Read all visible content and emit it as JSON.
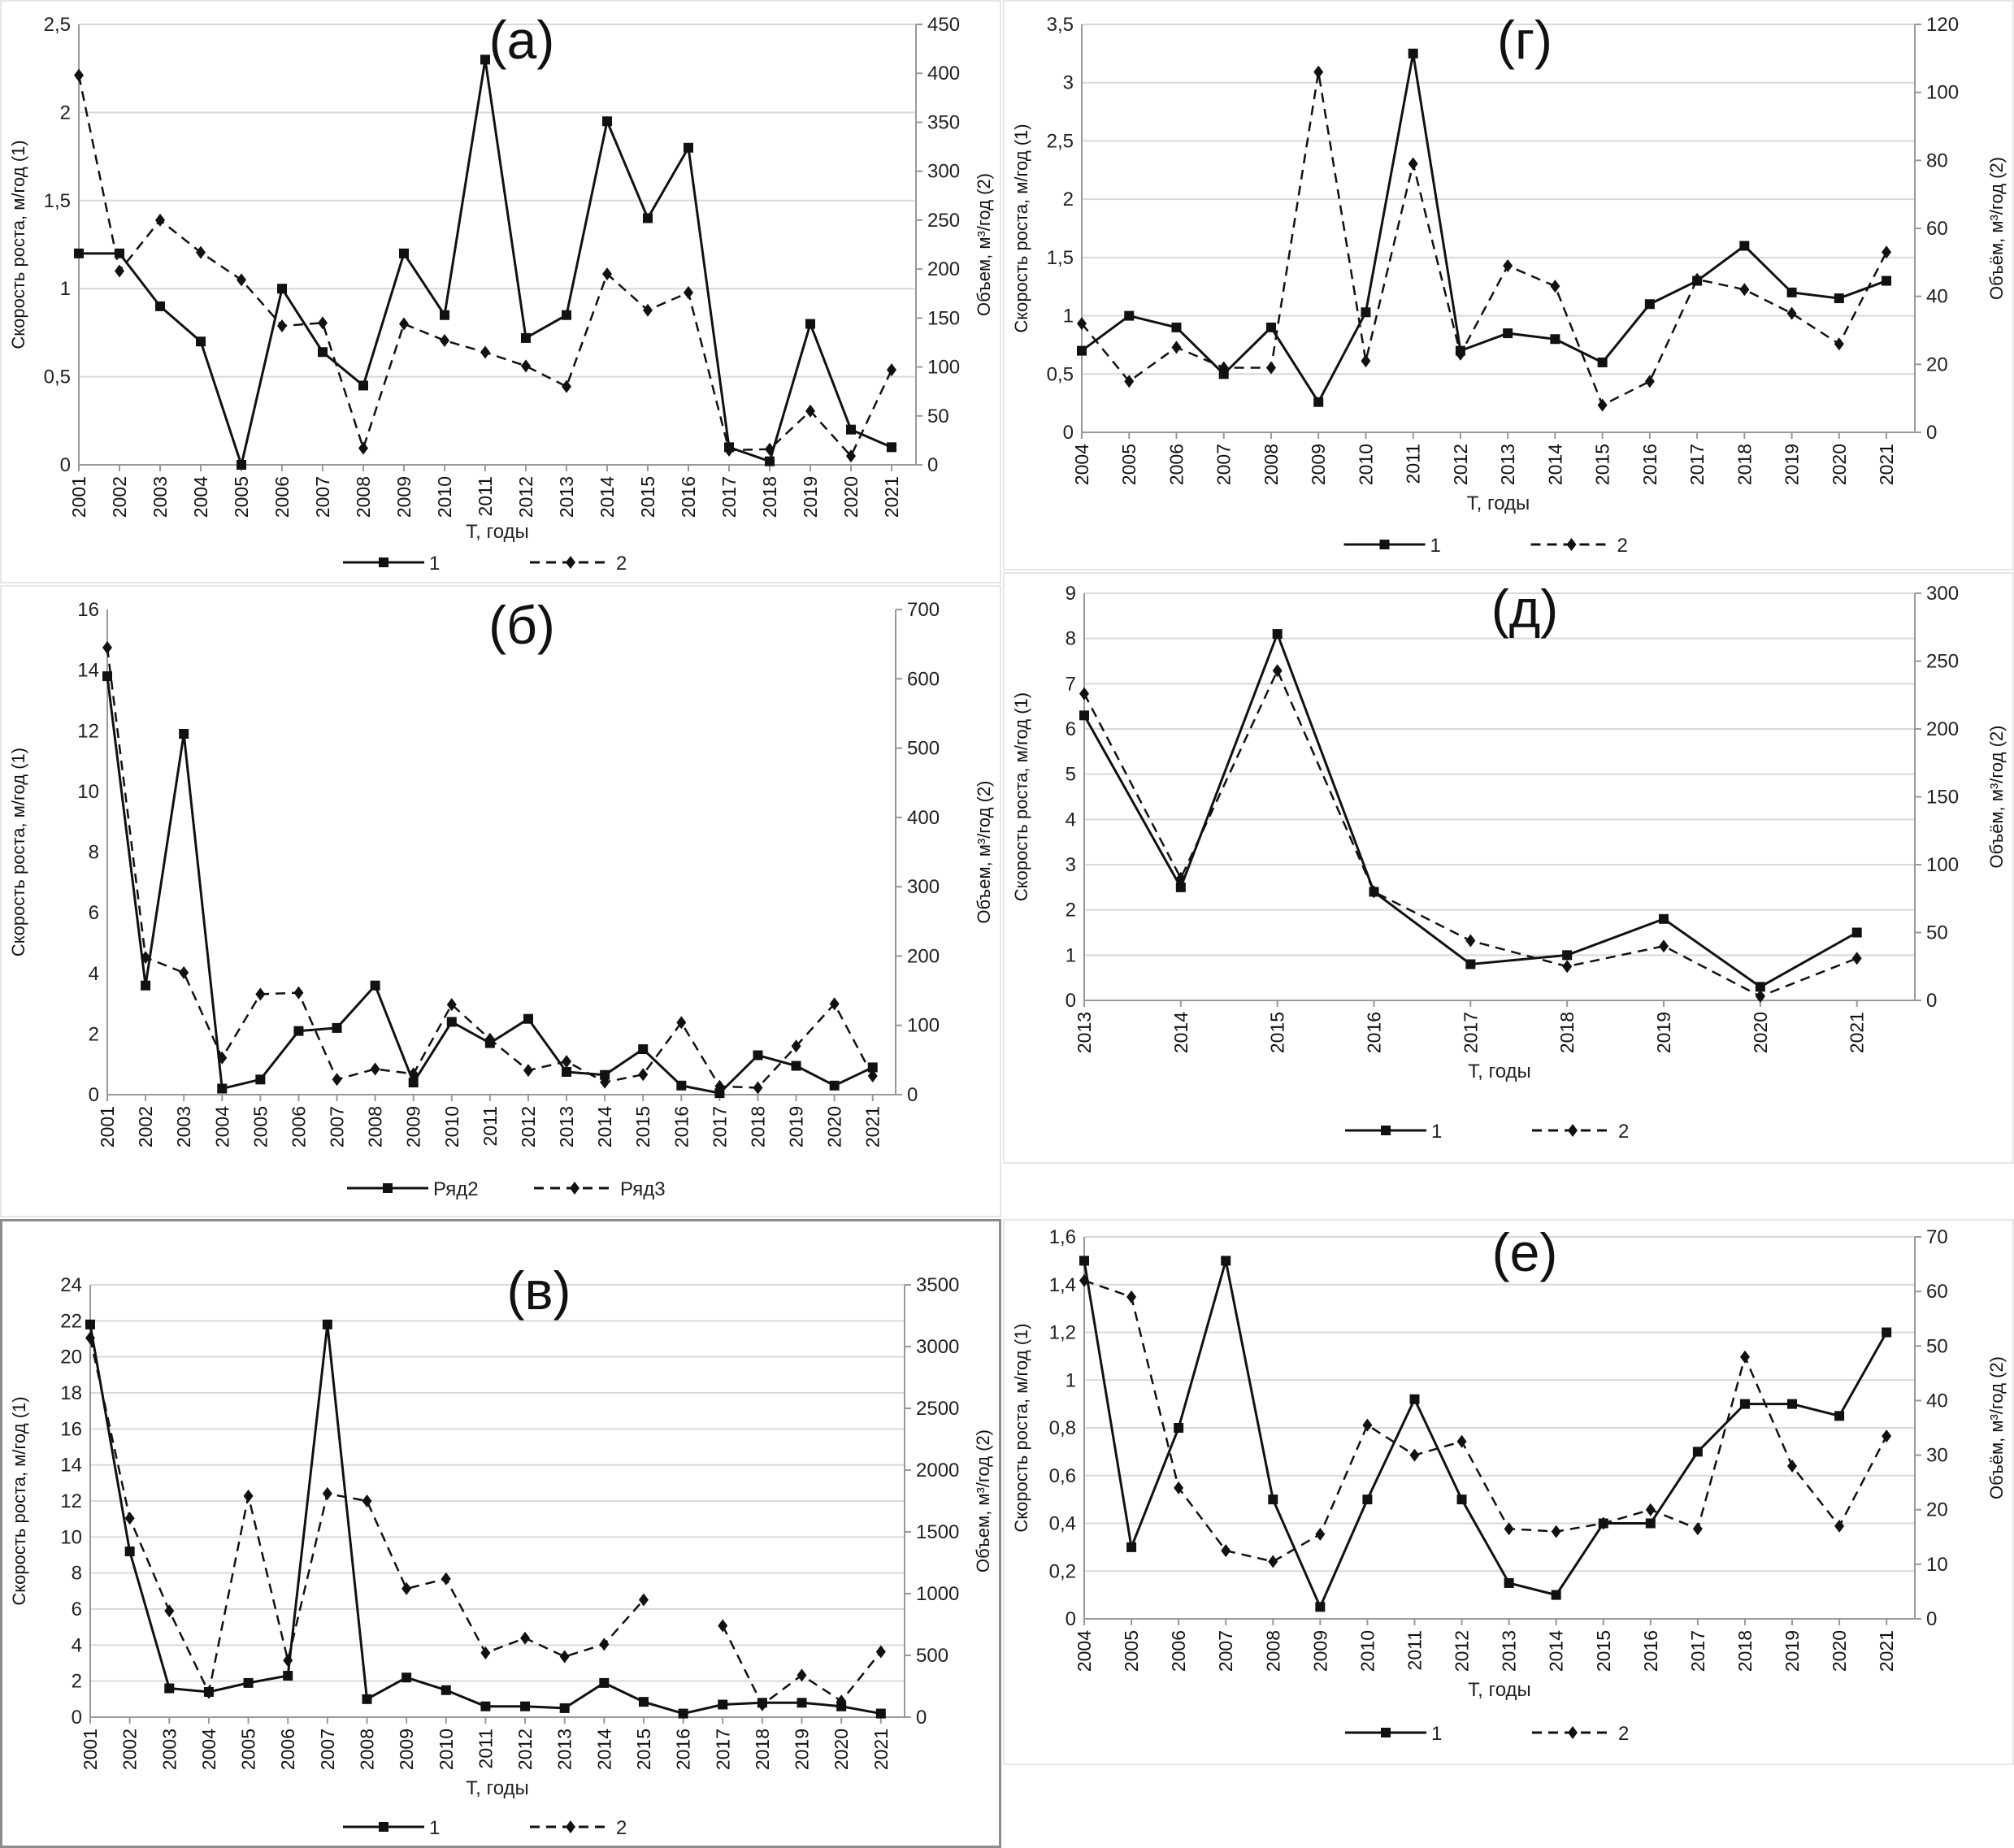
{
  "chart_data": [
    {
      "id": "a",
      "type": "line",
      "title": "(а)",
      "categories": [
        "2001",
        "2002",
        "2003",
        "2004",
        "2005",
        "2006",
        "2007",
        "2008",
        "2009",
        "2010",
        "2011",
        "2012",
        "2013",
        "2014",
        "2015",
        "2016",
        "2017",
        "2018",
        "2019",
        "2020",
        "2021"
      ],
      "xlabel": "Т, годы",
      "ylabel": "Скорость роста, м/год (1)",
      "y2label": "Объем, м³/год (2)",
      "ylim": [
        0,
        2.5
      ],
      "y2lim": [
        0,
        450
      ],
      "grid": true,
      "yticks": [
        "0",
        "0,5",
        "1",
        "1,5",
        "2",
        "2,5"
      ],
      "y2ticks": [
        "0",
        "50",
        "100",
        "150",
        "200",
        "250",
        "300",
        "350",
        "400",
        "450"
      ],
      "legend_position": "bottom",
      "series": [
        {
          "name": "1",
          "axis": "left",
          "style": "solid",
          "marker": "square",
          "values": [
            1.2,
            1.2,
            0.9,
            0.7,
            0,
            1.0,
            0.64,
            0.45,
            1.2,
            0.85,
            2.3,
            0.72,
            0.85,
            1.95,
            1.4,
            1.8,
            0.1,
            0.02,
            0.8,
            0.2,
            0.1
          ]
        },
        {
          "name": "2",
          "axis": "right",
          "style": "dashed",
          "marker": "diamond",
          "values": [
            398,
            198,
            250,
            217,
            189,
            142,
            145,
            17,
            144,
            127,
            115,
            101,
            80,
            195,
            158,
            176,
            15,
            16,
            55,
            9,
            97
          ]
        }
      ]
    },
    {
      "id": "b",
      "type": "line",
      "title": "(б)",
      "categories": [
        "2001",
        "2002",
        "2003",
        "2004",
        "2005",
        "2006",
        "2007",
        "2008",
        "2009",
        "2010",
        "2011",
        "2012",
        "2013",
        "2014",
        "2015",
        "2016",
        "2017",
        "2018",
        "2019",
        "2020",
        "2021"
      ],
      "xlabel": "",
      "ylabel": "Скорость роста, м/год (1)",
      "y2label": "Объем, м³/год (2)",
      "ylim": [
        0,
        16
      ],
      "y2lim": [
        0,
        700
      ],
      "grid": false,
      "yticks": [
        "0",
        "2",
        "4",
        "6",
        "8",
        "10",
        "12",
        "14",
        "16"
      ],
      "y2ticks": [
        "0",
        "100",
        "200",
        "300",
        "400",
        "500",
        "600",
        "700"
      ],
      "legend_position": "bottom",
      "series": [
        {
          "name": "Ряд2",
          "axis": "left",
          "style": "solid",
          "marker": "square",
          "values": [
            13.8,
            3.6,
            11.9,
            0.2,
            0.5,
            2.1,
            2.2,
            3.6,
            0.4,
            2.4,
            1.7,
            2.5,
            0.75,
            0.65,
            1.5,
            0.3,
            0.05,
            1.3,
            0.95,
            0.3,
            0.9
          ]
        },
        {
          "name": "Ряд3",
          "axis": "right",
          "style": "dashed",
          "marker": "diamond",
          "values": [
            645,
            198,
            176,
            53,
            145,
            147,
            22,
            37,
            30,
            130,
            80,
            35,
            48,
            18,
            29,
            104,
            12,
            10,
            70,
            131,
            27
          ]
        }
      ]
    },
    {
      "id": "v",
      "type": "line",
      "title": "(в)",
      "categories": [
        "2001",
        "2002",
        "2003",
        "2004",
        "2005",
        "2006",
        "2007",
        "2008",
        "2009",
        "2010",
        "2011",
        "2012",
        "2013",
        "2014",
        "2015",
        "2016",
        "2017",
        "2018",
        "2019",
        "2020",
        "2021"
      ],
      "xlabel": "Т, годы",
      "ylabel": "Скорость роста, м/год (1)",
      "y2label": "Объем, м³/год (2)",
      "ylim": [
        0,
        24
      ],
      "y2lim": [
        0,
        3500
      ],
      "grid": true,
      "yticks": [
        "0",
        "2",
        "4",
        "6",
        "8",
        "10",
        "12",
        "14",
        "16",
        "18",
        "20",
        "22",
        "24"
      ],
      "y2ticks": [
        "0",
        "500",
        "1000",
        "1500",
        "2000",
        "2500",
        "3000",
        "3500"
      ],
      "legend_position": "bottom",
      "series": [
        {
          "name": "1",
          "axis": "left",
          "style": "solid",
          "marker": "square",
          "values": [
            21.8,
            9.2,
            1.6,
            1.4,
            1.9,
            2.3,
            21.8,
            1.0,
            2.2,
            1.5,
            0.6,
            0.6,
            0.5,
            1.9,
            0.85,
            0.2,
            0.7,
            0.8,
            0.8,
            0.6,
            0.2
          ]
        },
        {
          "name": "2",
          "axis": "right",
          "style": "dashed",
          "marker": "diamond",
          "values": [
            3070,
            1610,
            860,
            200,
            1790,
            460,
            1810,
            1750,
            1040,
            1120,
            520,
            640,
            490,
            590,
            950,
            null,
            740,
            100,
            340,
            130,
            530
          ]
        }
      ]
    },
    {
      "id": "g",
      "type": "line",
      "title": "(г)",
      "categories": [
        "2004",
        "2005",
        "2006",
        "2007",
        "2008",
        "2009",
        "2010",
        "2011",
        "2012",
        "2013",
        "2014",
        "2015",
        "2016",
        "2017",
        "2018",
        "2019",
        "2020",
        "2021"
      ],
      "xlabel": "Т, годы",
      "ylabel": "Скорость роста, м/год (1)",
      "y2label": "Объём, м³/год (2)",
      "ylim": [
        0,
        3.5
      ],
      "y2lim": [
        0,
        120
      ],
      "grid": true,
      "yticks": [
        "0",
        "0,5",
        "1",
        "1,5",
        "2",
        "2,5",
        "3",
        "3,5"
      ],
      "y2ticks": [
        "0",
        "20",
        "40",
        "60",
        "80",
        "100",
        "120"
      ],
      "legend_position": "bottom",
      "series": [
        {
          "name": "1",
          "axis": "left",
          "style": "solid",
          "marker": "square",
          "values": [
            0.7,
            1.0,
            0.9,
            0.5,
            0.9,
            0.26,
            1.03,
            3.25,
            0.7,
            0.85,
            0.8,
            0.6,
            1.1,
            1.3,
            1.6,
            1.2,
            1.15,
            1.3
          ]
        },
        {
          "name": "2",
          "axis": "right",
          "style": "dashed",
          "marker": "diamond",
          "values": [
            32,
            15,
            25,
            19,
            19,
            106,
            21,
            79,
            23,
            49,
            43,
            8,
            15,
            45,
            42,
            35,
            26,
            53
          ]
        }
      ]
    },
    {
      "id": "d",
      "type": "line",
      "title": "(д)",
      "categories": [
        "2013",
        "2014",
        "2015",
        "2016",
        "2017",
        "2018",
        "2019",
        "2020",
        "2021"
      ],
      "xlabel": "Т, годы",
      "ylabel": "Скорость роста, м/год (1)",
      "y2label": "Объём, м³/год (2)",
      "ylim": [
        0,
        9
      ],
      "y2lim": [
        0,
        300
      ],
      "grid": true,
      "yticks": [
        "0",
        "1",
        "2",
        "3",
        "4",
        "5",
        "6",
        "7",
        "8",
        "9"
      ],
      "y2ticks": [
        "0",
        "50",
        "100",
        "150",
        "200",
        "250",
        "300"
      ],
      "legend_position": "bottom",
      "series": [
        {
          "name": "1",
          "axis": "left",
          "style": "solid",
          "marker": "square",
          "values": [
            6.3,
            2.5,
            8.1,
            2.4,
            0.8,
            1.0,
            1.8,
            0.3,
            1.5
          ]
        },
        {
          "name": "2",
          "axis": "right",
          "style": "dashed",
          "marker": "diamond",
          "values": [
            226,
            90,
            243,
            80,
            44,
            25,
            40,
            3,
            31
          ]
        }
      ]
    },
    {
      "id": "e",
      "type": "line",
      "title": "(е)",
      "categories": [
        "2004",
        "2005",
        "2006",
        "2007",
        "2008",
        "2009",
        "2010",
        "2011",
        "2012",
        "2013",
        "2014",
        "2015",
        "2016",
        "2017",
        "2018",
        "2019",
        "2020",
        "2021"
      ],
      "xlabel": "Т, годы",
      "ylabel": "Скорость роста, м/год (1)",
      "y2label": "Объём, м³/год (2)",
      "ylim": [
        0,
        1.6
      ],
      "y2lim": [
        0,
        70
      ],
      "grid": true,
      "yticks": [
        "0",
        "0,2",
        "0,4",
        "0,6",
        "0,8",
        "1",
        "1,2",
        "1,4",
        "1,6"
      ],
      "y2ticks": [
        "0",
        "10",
        "20",
        "30",
        "40",
        "50",
        "60",
        "70"
      ],
      "legend_position": "bottom",
      "series": [
        {
          "name": "1",
          "axis": "left",
          "style": "solid",
          "marker": "square",
          "values": [
            1.5,
            0.3,
            0.8,
            1.5,
            0.5,
            0.05,
            0.5,
            0.92,
            0.5,
            0.15,
            0.1,
            0.4,
            0.4,
            0.7,
            0.9,
            0.9,
            0.85,
            1.2
          ]
        },
        {
          "name": "2",
          "axis": "right",
          "style": "dashed",
          "marker": "diamond",
          "values": [
            62,
            59,
            24,
            12.5,
            10.5,
            15.5,
            35.5,
            30,
            32.5,
            16.5,
            16,
            17.5,
            20,
            16.5,
            48,
            28,
            17,
            33.5
          ]
        }
      ]
    }
  ]
}
